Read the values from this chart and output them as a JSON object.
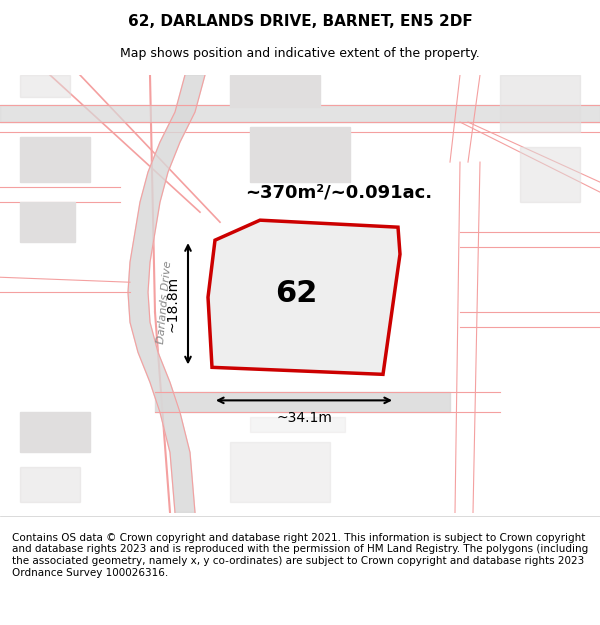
{
  "title": "62, DARLANDS DRIVE, BARNET, EN5 2DF",
  "subtitle": "Map shows position and indicative extent of the property.",
  "footer": "Contains OS data © Crown copyright and database right 2021. This information is subject to Crown copyright and database rights 2023 and is reproduced with the permission of HM Land Registry. The polygons (including the associated geometry, namely x, y co-ordinates) are subject to Crown copyright and database rights 2023 Ordnance Survey 100026316.",
  "area_label": "~370m²/~0.091ac.",
  "plot_number": "62",
  "dim_width": "~34.1m",
  "dim_height": "~18.8m",
  "road_label": "Darlands Drive",
  "background_color": "#f5f5f5",
  "map_bg": "#f0eeee",
  "plot_fill": "#e8e8e8",
  "plot_outline": "#cc0000",
  "road_color": "#d9d9d9",
  "pink_line_color": "#f4a0a0",
  "building_color": "#e0dede",
  "title_fontsize": 11,
  "subtitle_fontsize": 9,
  "footer_fontsize": 7.5
}
